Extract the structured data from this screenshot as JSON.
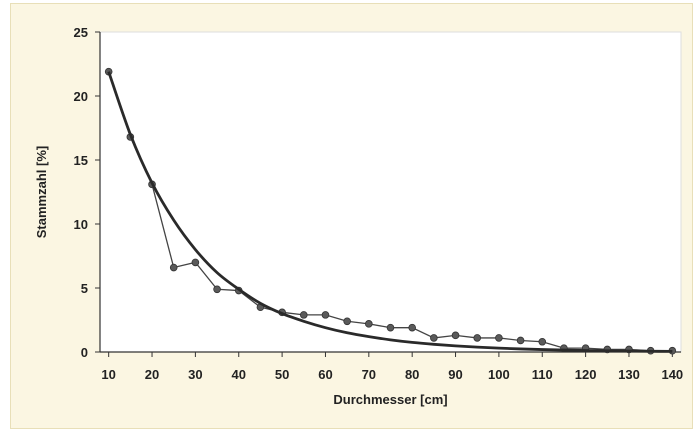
{
  "chart_data": {
    "type": "line",
    "xlabel": "Durchmesser [cm]",
    "ylabel": "Stammzahl [%]",
    "xlim": [
      8,
      142
    ],
    "ylim": [
      0,
      25
    ],
    "x_ticks": [
      "10",
      "20",
      "30",
      "40",
      "50",
      "60",
      "70",
      "80",
      "90",
      "100",
      "110",
      "120",
      "130",
      "140"
    ],
    "y_ticks": [
      "0",
      "5",
      "10",
      "15",
      "20",
      "25"
    ],
    "grid": false,
    "series": [
      {
        "style": "line-with-markers",
        "x": [
          10,
          15,
          20,
          25,
          30,
          35,
          40,
          45,
          50,
          55,
          60,
          65,
          70,
          75,
          80,
          85,
          90,
          95,
          100,
          105,
          110,
          115,
          120,
          125,
          130,
          135,
          140
        ],
        "values": [
          21.9,
          16.8,
          13.1,
          6.6,
          7.0,
          4.9,
          4.8,
          3.5,
          3.1,
          2.9,
          2.9,
          2.4,
          2.2,
          1.9,
          1.9,
          1.1,
          1.3,
          1.1,
          1.1,
          0.9,
          0.8,
          0.3,
          0.3,
          0.2,
          0.2,
          0.1,
          0.1
        ]
      },
      {
        "style": "smooth-curve",
        "x": [
          10,
          15,
          20,
          25,
          30,
          35,
          40,
          45,
          50,
          55,
          60,
          65,
          70,
          75,
          80,
          85,
          90,
          95,
          100,
          105,
          110,
          115,
          120,
          125,
          130,
          135,
          140
        ],
        "values": [
          21.9,
          17.0,
          13.2,
          10.3,
          8.0,
          6.2,
          4.9,
          3.8,
          3.0,
          2.4,
          1.9,
          1.5,
          1.2,
          0.95,
          0.75,
          0.6,
          0.48,
          0.38,
          0.3,
          0.24,
          0.19,
          0.15,
          0.12,
          0.1,
          0.08,
          0.06,
          0.05
        ]
      }
    ],
    "colors": {
      "plot_bg": "#ffffff",
      "frame_bg": "#fbf6e2",
      "line": "#333333",
      "marker": "#5a5a5a"
    }
  }
}
